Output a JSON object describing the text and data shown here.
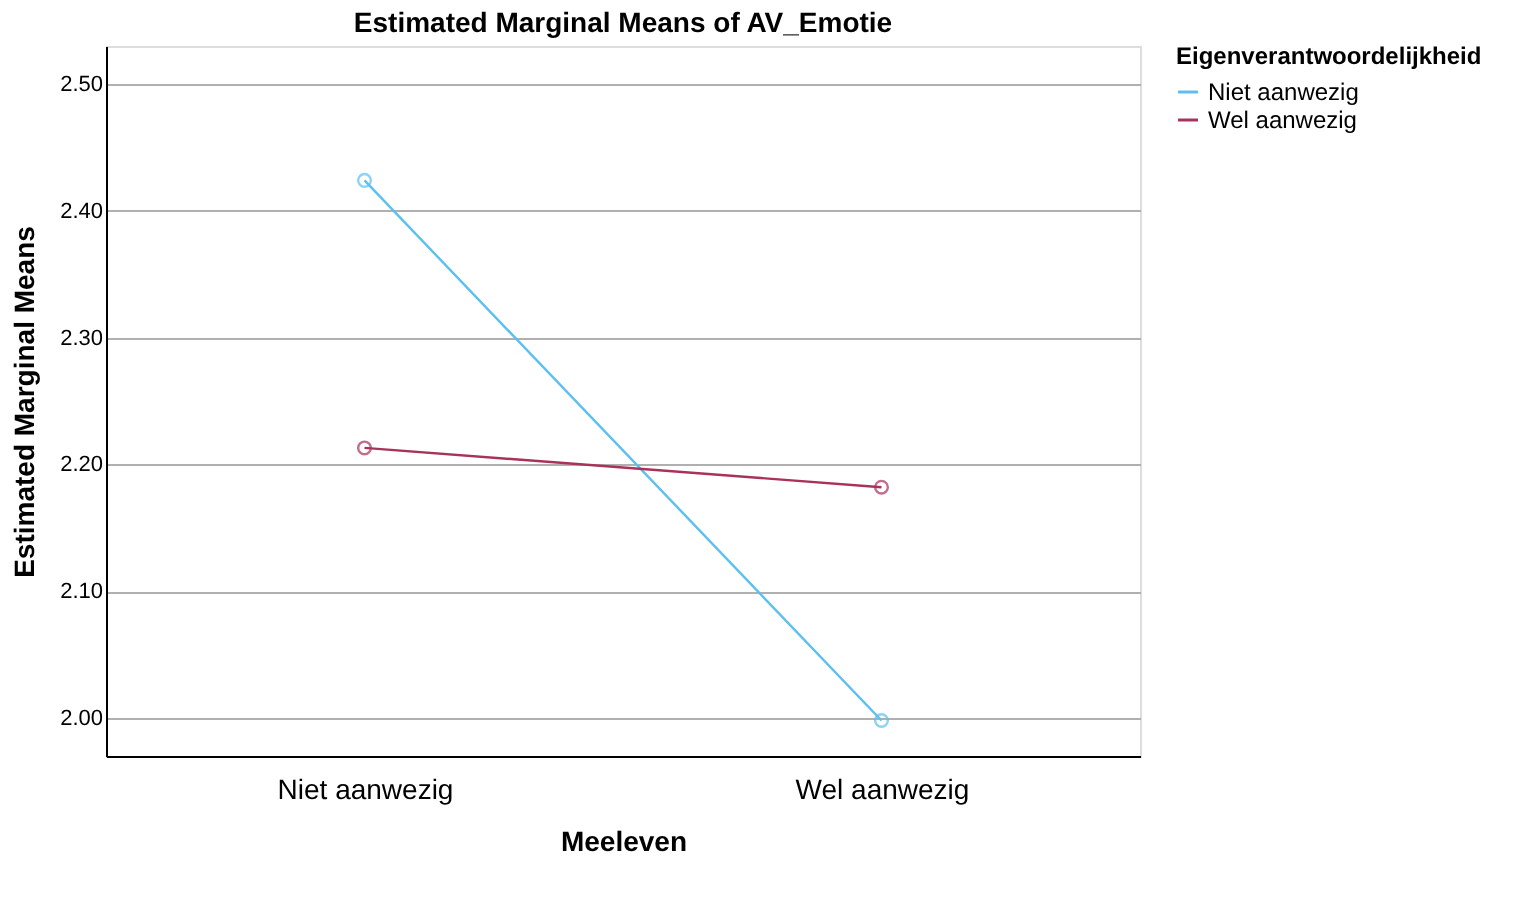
{
  "chart_data": {
    "type": "line",
    "title": "Estimated Marginal Means of AV_Emotie",
    "xlabel": "Meeleven",
    "ylabel": "Estimated Marginal Means",
    "legend_title": "Eigenverantwoordelijkheid",
    "categories": [
      "Niet aanwezig",
      "Wel aanwezig"
    ],
    "series": [
      {
        "name": "Niet aanwezig",
        "color": "#5bc0f0",
        "values": [
          2.424,
          1.998
        ]
      },
      {
        "name": "Wel aanwezig",
        "color": "#a8325a",
        "values": [
          2.213,
          2.182
        ]
      }
    ],
    "ylim": [
      1.97,
      2.53
    ],
    "yticks": [
      {
        "value": 2.0,
        "label": "2.00"
      },
      {
        "value": 2.1,
        "label": "2.10"
      },
      {
        "value": 2.2,
        "label": "2.20"
      },
      {
        "value": 2.3,
        "label": "2.30"
      },
      {
        "value": 2.4,
        "label": "2.40"
      },
      {
        "value": 2.5,
        "label": "2.50"
      }
    ],
    "grid": "y",
    "legend": "top right",
    "marker": "circle",
    "line_style": "solid"
  }
}
